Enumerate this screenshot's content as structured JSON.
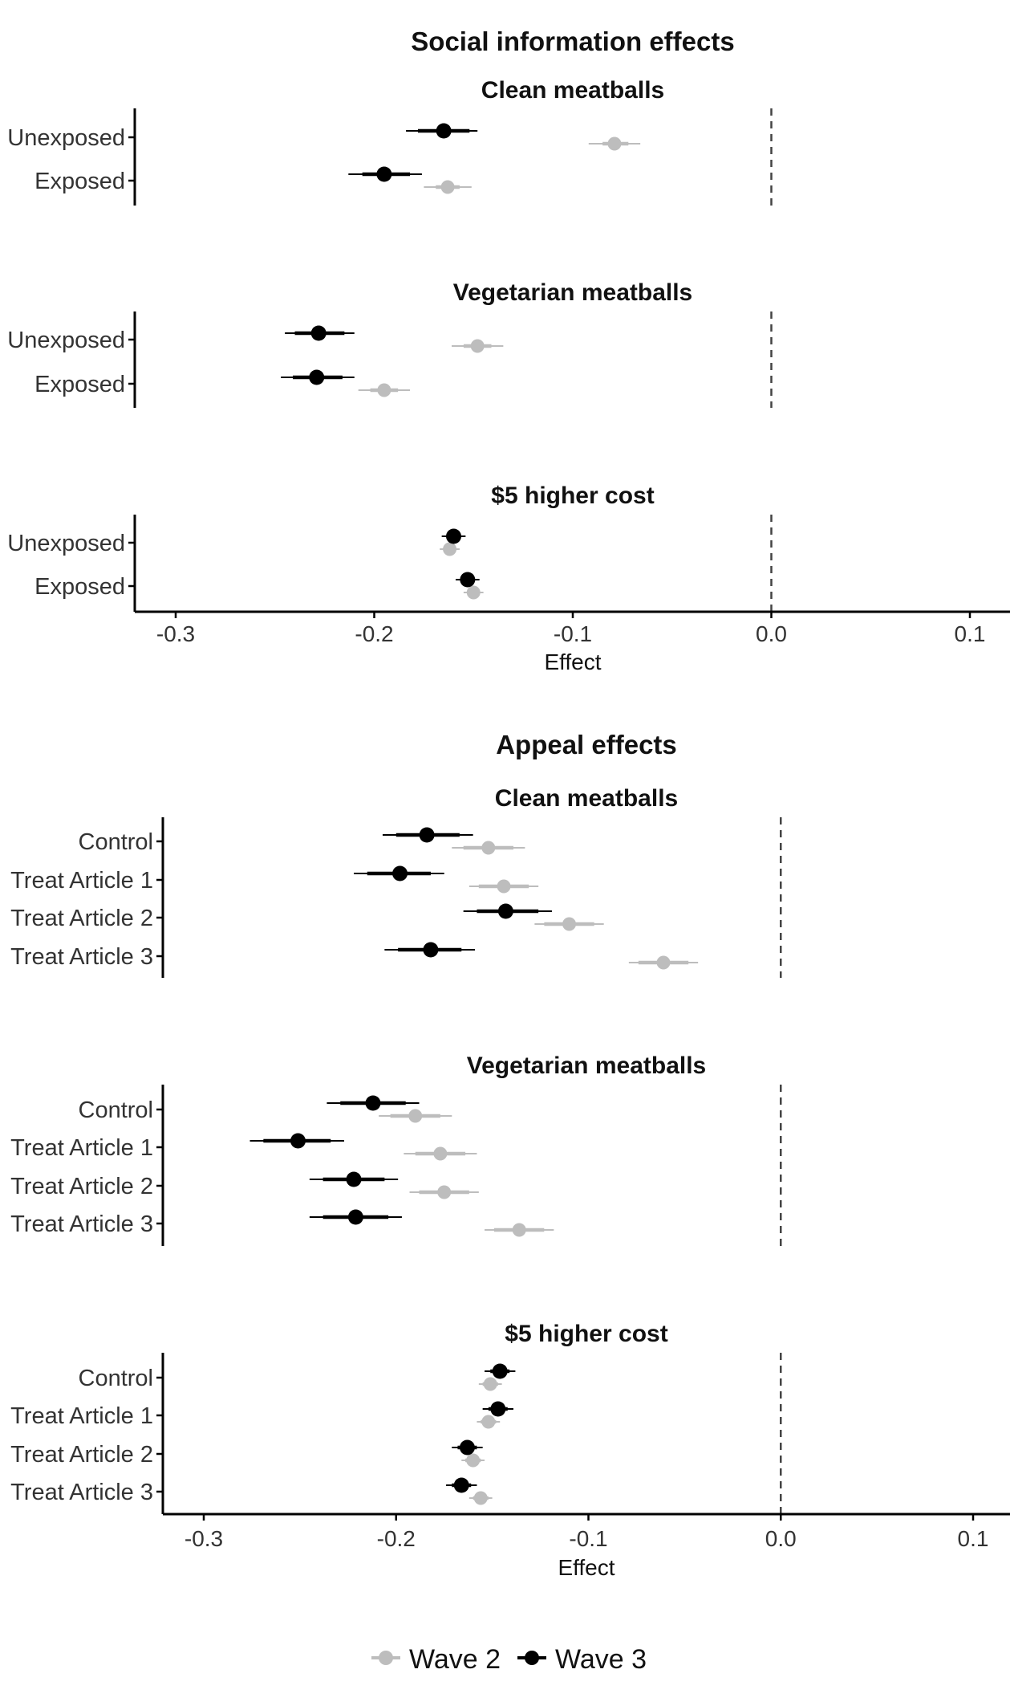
{
  "legend": {
    "items": [
      {
        "label": "Wave 2",
        "color": "#bdbdbd"
      },
      {
        "label": "Wave 3",
        "color": "#000000"
      }
    ]
  },
  "chart_data": [
    {
      "type": "scatter",
      "title": "Social information effects",
      "xlabel": "Effect",
      "xlim": [
        -0.32,
        0.12
      ],
      "xticks": [
        -0.3,
        -0.2,
        -0.1,
        0.0,
        0.1
      ],
      "xtick_labels": [
        "-0.3",
        "-0.2",
        "-0.1",
        "0.0",
        "0.1"
      ],
      "reference_line": 0.0,
      "facets": [
        {
          "title": "Clean meatballs",
          "categories": [
            "Unexposed",
            "Exposed"
          ],
          "series": [
            {
              "name": "Wave 2",
              "values": [
                -0.079,
                -0.163
              ],
              "lo_outer": [
                -0.092,
                -0.175
              ],
              "hi_outer": [
                -0.066,
                -0.151
              ],
              "lo_inner": [
                -0.085,
                -0.169
              ],
              "hi_inner": [
                -0.072,
                -0.157
              ]
            },
            {
              "name": "Wave 3",
              "values": [
                -0.165,
                -0.195
              ],
              "lo_outer": [
                -0.184,
                -0.213
              ],
              "hi_outer": [
                -0.148,
                -0.176
              ],
              "lo_inner": [
                -0.178,
                -0.206
              ],
              "hi_inner": [
                -0.152,
                -0.182
              ]
            }
          ]
        },
        {
          "title": "Vegetarian meatballs",
          "categories": [
            "Unexposed",
            "Exposed"
          ],
          "series": [
            {
              "name": "Wave 2",
              "values": [
                -0.148,
                -0.195
              ],
              "lo_outer": [
                -0.161,
                -0.208
              ],
              "hi_outer": [
                -0.135,
                -0.182
              ],
              "lo_inner": [
                -0.155,
                -0.202
              ],
              "hi_inner": [
                -0.141,
                -0.188
              ]
            },
            {
              "name": "Wave 3",
              "values": [
                -0.228,
                -0.229
              ],
              "lo_outer": [
                -0.245,
                -0.247
              ],
              "hi_outer": [
                -0.21,
                -0.21
              ],
              "lo_inner": [
                -0.24,
                -0.241
              ],
              "hi_inner": [
                -0.215,
                -0.216
              ]
            }
          ]
        },
        {
          "title": "$5 higher cost",
          "categories": [
            "Unexposed",
            "Exposed"
          ],
          "series": [
            {
              "name": "Wave 2",
              "values": [
                -0.162,
                -0.15
              ],
              "lo_outer": [
                -0.167,
                -0.155
              ],
              "hi_outer": [
                -0.157,
                -0.145
              ],
              "lo_inner": [
                -0.165,
                -0.153
              ],
              "hi_inner": [
                -0.159,
                -0.147
              ]
            },
            {
              "name": "Wave 3",
              "values": [
                -0.16,
                -0.153
              ],
              "lo_outer": [
                -0.166,
                -0.159
              ],
              "hi_outer": [
                -0.154,
                -0.147
              ],
              "lo_inner": [
                -0.163,
                -0.156
              ],
              "hi_inner": [
                -0.157,
                -0.15
              ]
            }
          ]
        }
      ]
    },
    {
      "type": "scatter",
      "title": "Appeal effects",
      "xlabel": "Effect",
      "xlim": [
        -0.32,
        0.12
      ],
      "xticks": [
        -0.3,
        -0.2,
        -0.1,
        0.0,
        0.1
      ],
      "xtick_labels": [
        "-0.3",
        "-0.2",
        "-0.1",
        "0.0",
        "0.1"
      ],
      "reference_line": 0.0,
      "facets": [
        {
          "title": "Clean meatballs",
          "categories": [
            "Control",
            "Treat Article 1",
            "Treat Article 2",
            "Treat Article 3"
          ],
          "series": [
            {
              "name": "Wave 2",
              "values": [
                -0.152,
                -0.144,
                -0.11,
                -0.061
              ],
              "lo_outer": [
                -0.171,
                -0.162,
                -0.128,
                -0.079
              ],
              "hi_outer": [
                -0.133,
                -0.126,
                -0.092,
                -0.043
              ],
              "lo_inner": [
                -0.165,
                -0.157,
                -0.123,
                -0.074
              ],
              "hi_inner": [
                -0.139,
                -0.131,
                -0.097,
                -0.048
              ]
            },
            {
              "name": "Wave 3",
              "values": [
                -0.184,
                -0.198,
                -0.143,
                -0.182
              ],
              "lo_outer": [
                -0.207,
                -0.222,
                -0.165,
                -0.206
              ],
              "hi_outer": [
                -0.16,
                -0.175,
                -0.119,
                -0.159
              ],
              "lo_inner": [
                -0.2,
                -0.215,
                -0.158,
                -0.199
              ],
              "hi_inner": [
                -0.167,
                -0.182,
                -0.126,
                -0.166
              ]
            }
          ]
        },
        {
          "title": "Vegetarian meatballs",
          "categories": [
            "Control",
            "Treat Article 1",
            "Treat Article 2",
            "Treat Article 3"
          ],
          "series": [
            {
              "name": "Wave 2",
              "values": [
                -0.19,
                -0.177,
                -0.175,
                -0.136
              ],
              "lo_outer": [
                -0.209,
                -0.196,
                -0.193,
                -0.154
              ],
              "hi_outer": [
                -0.171,
                -0.158,
                -0.157,
                -0.118
              ],
              "lo_inner": [
                -0.203,
                -0.19,
                -0.188,
                -0.149
              ],
              "hi_inner": [
                -0.177,
                -0.164,
                -0.162,
                -0.123
              ]
            },
            {
              "name": "Wave 3",
              "values": [
                -0.212,
                -0.251,
                -0.222,
                -0.221
              ],
              "lo_outer": [
                -0.236,
                -0.276,
                -0.245,
                -0.245
              ],
              "hi_outer": [
                -0.188,
                -0.227,
                -0.199,
                -0.197
              ],
              "lo_inner": [
                -0.229,
                -0.269,
                -0.238,
                -0.238
              ],
              "hi_inner": [
                -0.195,
                -0.234,
                -0.206,
                -0.204
              ]
            }
          ]
        },
        {
          "title": "$5 higher cost",
          "categories": [
            "Control",
            "Treat Article 1",
            "Treat Article 2",
            "Treat Article 3"
          ],
          "series": [
            {
              "name": "Wave 2",
              "values": [
                -0.151,
                -0.152,
                -0.16,
                -0.156
              ],
              "lo_outer": [
                -0.157,
                -0.158,
                -0.166,
                -0.162
              ],
              "hi_outer": [
                -0.145,
                -0.146,
                -0.154,
                -0.15
              ],
              "lo_inner": [
                -0.155,
                -0.156,
                -0.164,
                -0.16
              ],
              "hi_inner": [
                -0.147,
                -0.148,
                -0.156,
                -0.152
              ]
            },
            {
              "name": "Wave 3",
              "values": [
                -0.146,
                -0.147,
                -0.163,
                -0.166
              ],
              "lo_outer": [
                -0.154,
                -0.155,
                -0.171,
                -0.174
              ],
              "hi_outer": [
                -0.138,
                -0.139,
                -0.155,
                -0.158
              ],
              "lo_inner": [
                -0.151,
                -0.152,
                -0.168,
                -0.171
              ],
              "hi_inner": [
                -0.141,
                -0.142,
                -0.158,
                -0.161
              ]
            }
          ]
        }
      ]
    }
  ]
}
